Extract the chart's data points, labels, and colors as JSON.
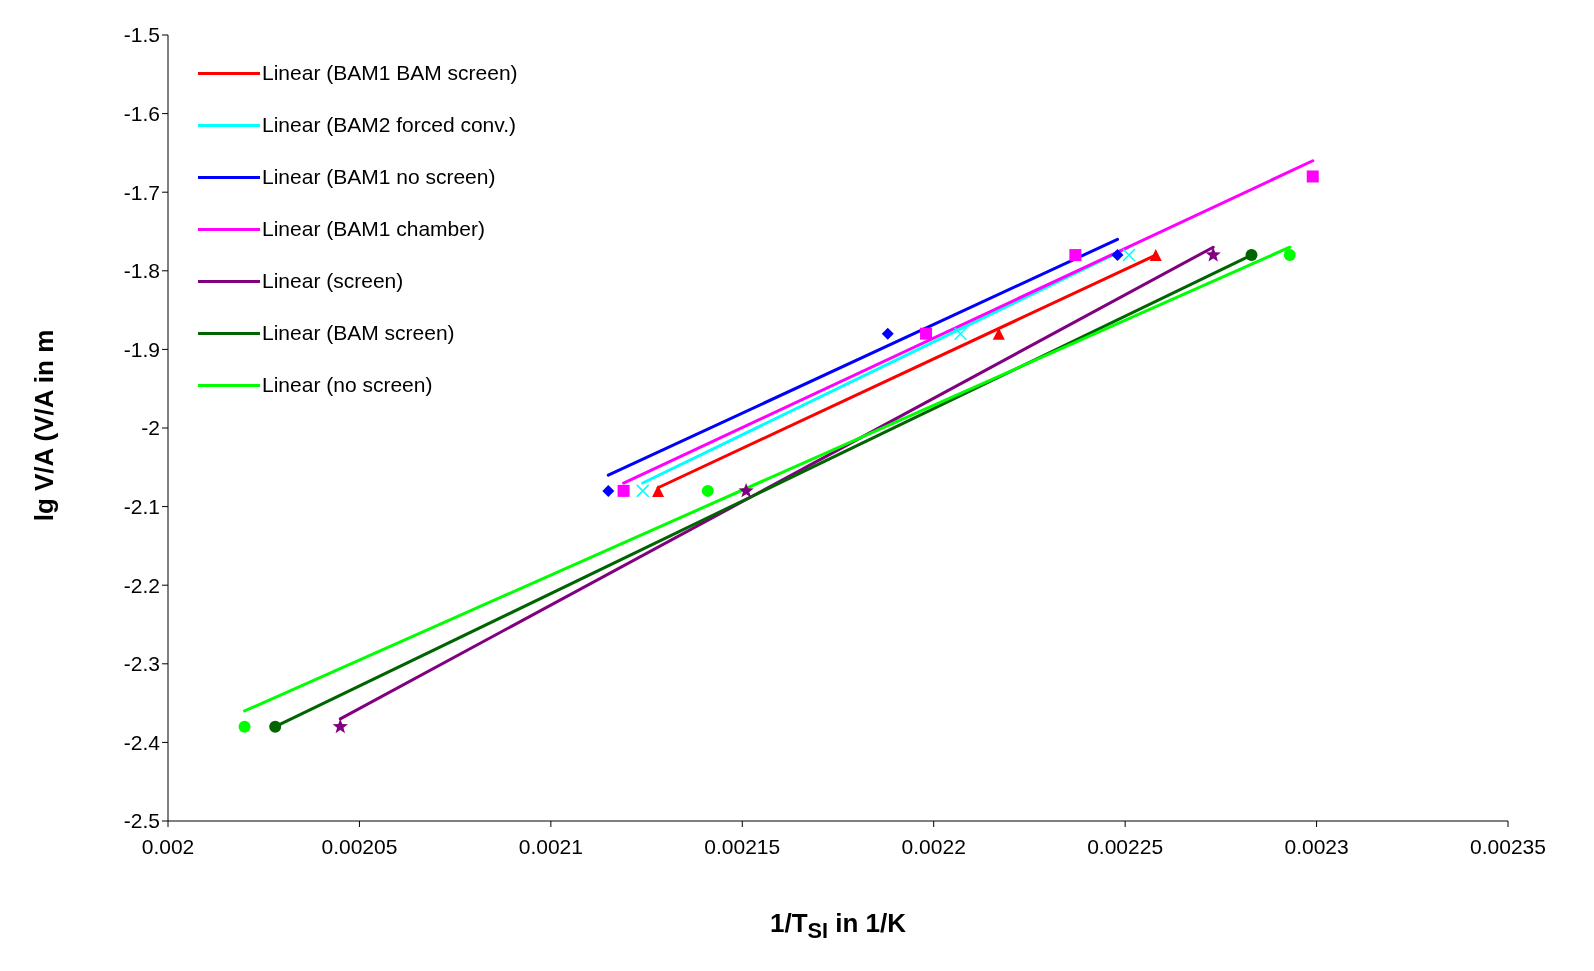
{
  "chart_data": {
    "type": "scatter",
    "xlabel": "1/T$_{SI}$ in 1/K",
    "ylabel": "lg V/A (V/A in m",
    "xlim": [
      0.002,
      0.00235
    ],
    "xticks": [
      0.002,
      0.00205,
      0.0021,
      0.00215,
      0.0022,
      0.00225,
      0.0023,
      0.00235
    ],
    "ylim": [
      -2.5,
      -1.5
    ],
    "yticks": [
      -1.5,
      -1.6,
      -1.7,
      -1.8,
      -1.9,
      -2,
      -2.1,
      -2.2,
      -2.3,
      -2.4,
      -2.5
    ],
    "grid": false,
    "legend": "top left",
    "series": [
      {
        "type": "scatter",
        "marker": "triangle",
        "color": "#ff0000",
        "x": [
          0.002128,
          0.002217,
          0.002258
        ],
        "values": [
          -2.08,
          -1.88,
          -1.78
        ]
      },
      {
        "type": "scatter",
        "marker": "cross",
        "color": "#00ffff",
        "x": [
          0.002124,
          0.002207,
          0.002251
        ],
        "values": [
          -2.08,
          -1.88,
          -1.78
        ]
      },
      {
        "type": "scatter",
        "marker": "diamond",
        "color": "#0000ff",
        "x": [
          0.002115,
          0.002188,
          0.002248
        ],
        "values": [
          -2.08,
          -1.88,
          -1.78
        ]
      },
      {
        "type": "scatter",
        "marker": "square",
        "color": "#ff00ff",
        "x": [
          0.002119,
          0.002198,
          0.002237,
          0.002299
        ],
        "values": [
          -2.08,
          -1.88,
          -1.78,
          -1.68
        ]
      },
      {
        "type": "scatter",
        "marker": "star",
        "color": "#800080",
        "x": [
          0.002045,
          0.002151,
          0.002273
        ],
        "values": [
          -2.38,
          -2.08,
          -1.78
        ]
      },
      {
        "type": "scatter",
        "marker": "circle",
        "color": "#006400",
        "x": [
          0.002028,
          0.002283
        ],
        "values": [
          -2.38,
          -1.78
        ]
      },
      {
        "type": "scatter",
        "marker": "circle",
        "color": "#00ff00",
        "x": [
          0.00202,
          0.002141,
          0.002293
        ],
        "values": [
          -2.38,
          -2.08,
          -1.78
        ]
      },
      {
        "type": "line",
        "name": "Linear (BAM1 BAM screen)",
        "color": "#ff0000",
        "x": [
          0.002128,
          0.002258
        ],
        "values": [
          -2.076,
          -1.78
        ]
      },
      {
        "type": "line",
        "name": "Linear (BAM2 forced conv.)",
        "color": "#00ffff",
        "x": [
          0.002124,
          0.002251
        ],
        "values": [
          -2.07,
          -1.77
        ]
      },
      {
        "type": "line",
        "name": "Linear (BAM1 no screen)",
        "color": "#0000ff",
        "x": [
          0.002115,
          0.002248
        ],
        "values": [
          -2.06,
          -1.76
        ]
      },
      {
        "type": "line",
        "name": "Linear (BAM1 chamber)",
        "color": "#ff00ff",
        "x": [
          0.002119,
          0.002299
        ],
        "values": [
          -2.07,
          -1.66
        ]
      },
      {
        "type": "line",
        "name": "Linear (screen)",
        "color": "#800080",
        "x": [
          0.002045,
          0.002273
        ],
        "values": [
          -2.37,
          -1.77
        ]
      },
      {
        "type": "line",
        "name": "Linear (BAM screen)",
        "color": "#006400",
        "x": [
          0.002028,
          0.002283
        ],
        "values": [
          -2.38,
          -1.78
        ]
      },
      {
        "type": "line",
        "name": "Linear (no screen)",
        "color": "#00ff00",
        "x": [
          0.00202,
          0.002293
        ],
        "values": [
          -2.36,
          -1.77
        ]
      }
    ]
  }
}
